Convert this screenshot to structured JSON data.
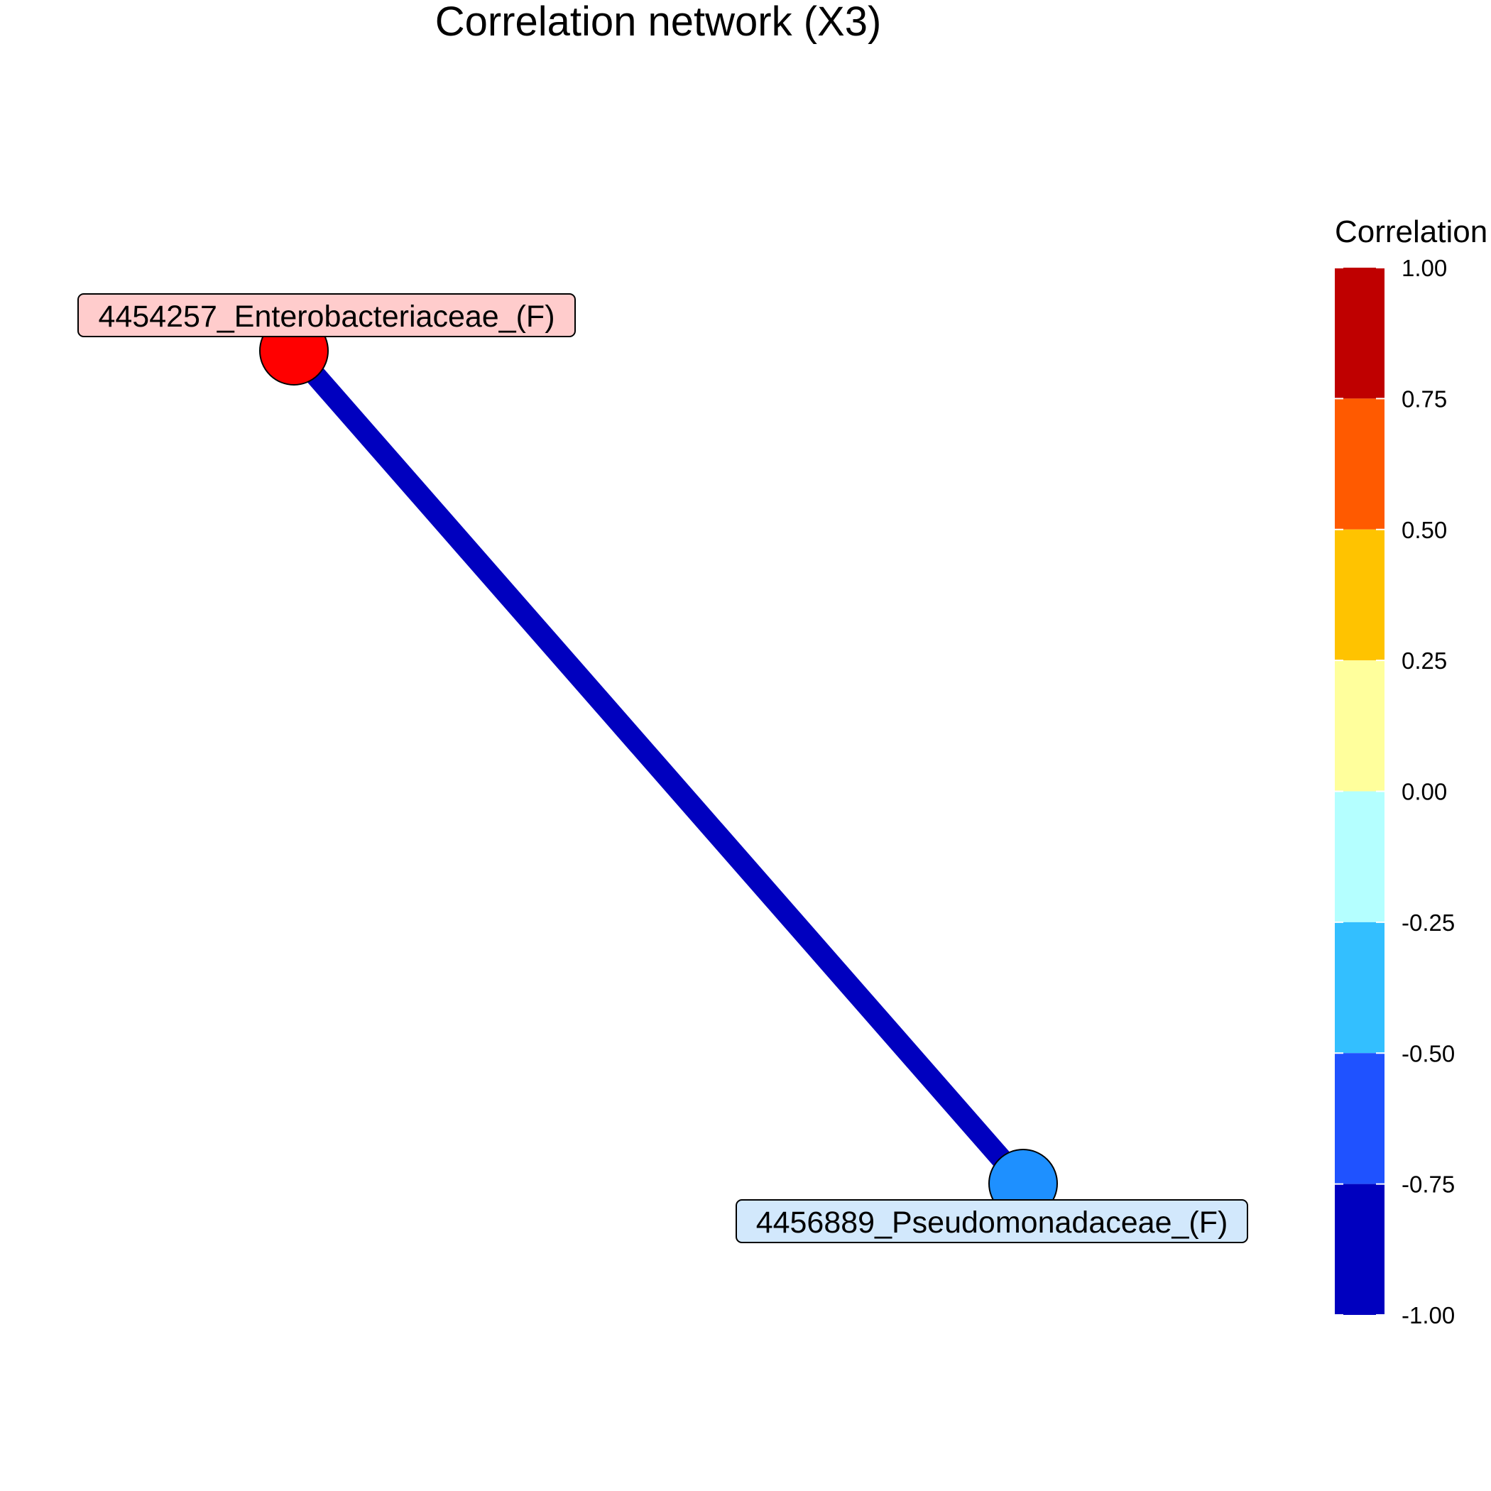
{
  "title": "Correlation network (X3)",
  "nodes": [
    {
      "id": "n1",
      "label": "4454257_Enterobacteriaceae_(F)",
      "color": "#ff0000",
      "label_bg": "#ffcccc"
    },
    {
      "id": "n2",
      "label": "4456889_Pseudomonadaceae_(F)",
      "color": "#1e90ff",
      "label_bg": "#d2e8fc"
    }
  ],
  "edges": [
    {
      "source": "n1",
      "target": "n2",
      "color": "#0000bf"
    }
  ],
  "legend": {
    "title": "Correlation",
    "ticks": [
      "1.00",
      "0.75",
      "0.50",
      "0.25",
      "0.00",
      "-0.25",
      "-0.50",
      "-0.75",
      "-1.00"
    ],
    "bins": [
      {
        "from": 0.75,
        "to": 1.0,
        "color": "#bf0000"
      },
      {
        "from": 0.5,
        "to": 0.75,
        "color": "#ff5a00"
      },
      {
        "from": 0.25,
        "to": 0.5,
        "color": "#ffc300"
      },
      {
        "from": 0.0,
        "to": 0.25,
        "color": "#ffff9c"
      },
      {
        "from": -0.25,
        "to": 0.0,
        "color": "#b4ffff"
      },
      {
        "from": -0.5,
        "to": -0.25,
        "color": "#33bfff"
      },
      {
        "from": -0.75,
        "to": -0.5,
        "color": "#1f52ff"
      },
      {
        "from": -1.0,
        "to": -0.75,
        "color": "#0000bf"
      }
    ]
  }
}
